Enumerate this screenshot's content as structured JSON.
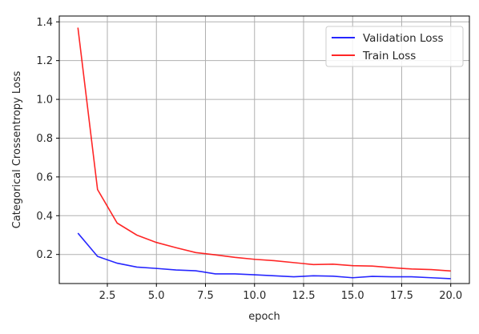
{
  "chart_data": {
    "type": "line",
    "xlabel": "epoch",
    "ylabel": "Categorical Crossentropy Loss",
    "xlim": [
      0.05,
      20.95
    ],
    "ylim": [
      0.05,
      1.43
    ],
    "grid": true,
    "legend_position": "top-right",
    "x": [
      1,
      2,
      3,
      4,
      5,
      6,
      7,
      8,
      9,
      10,
      11,
      12,
      13,
      14,
      15,
      16,
      17,
      18,
      19,
      20
    ],
    "x_ticks": [
      2.5,
      5.0,
      7.5,
      10.0,
      12.5,
      15.0,
      17.5,
      20.0
    ],
    "x_tick_labels": [
      "2.5",
      "5.0",
      "7.5",
      "10.0",
      "12.5",
      "15.0",
      "17.5",
      "20.0"
    ],
    "y_ticks": [
      0.2,
      0.4,
      0.6,
      0.8,
      1.0,
      1.2,
      1.4
    ],
    "y_tick_labels": [
      "0.2",
      "0.4",
      "0.6",
      "0.8",
      "1.0",
      "1.2",
      "1.4"
    ],
    "series": [
      {
        "name": "Validation Loss",
        "color": "#0000ff",
        "values": [
          0.31,
          0.19,
          0.155,
          0.135,
          0.128,
          0.12,
          0.116,
          0.1,
          0.1,
          0.095,
          0.09,
          0.085,
          0.09,
          0.088,
          0.08,
          0.087,
          0.085,
          0.085,
          0.08,
          0.075
        ]
      },
      {
        "name": "Train Loss",
        "color": "#ff0000",
        "values": [
          1.37,
          0.535,
          0.362,
          0.3,
          0.262,
          0.235,
          0.21,
          0.198,
          0.185,
          0.175,
          0.168,
          0.158,
          0.148,
          0.15,
          0.142,
          0.14,
          0.132,
          0.125,
          0.122,
          0.115
        ]
      }
    ]
  }
}
